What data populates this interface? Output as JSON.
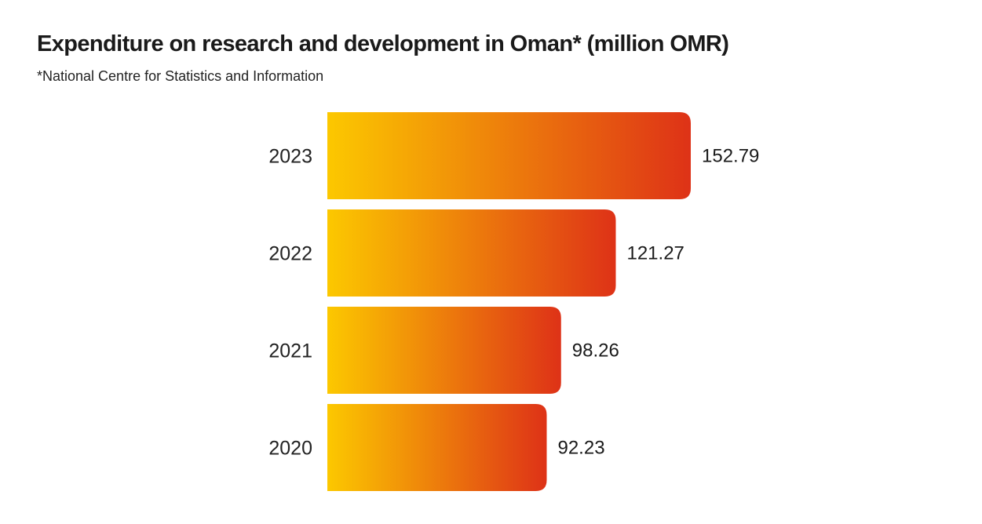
{
  "chart_data": {
    "type": "bar",
    "orientation": "horizontal",
    "title": "Expenditure on research and development in Oman* (million OMR)",
    "subtitle": "*National Centre for Statistics and Information",
    "categories": [
      "2023",
      "2022",
      "2021",
      "2020"
    ],
    "values": [
      152.79,
      121.27,
      98.26,
      92.23
    ],
    "value_labels": [
      "152.79",
      "121.27",
      "98.26",
      "92.23"
    ],
    "xlim": [
      0,
      152.79
    ],
    "grid": false,
    "legend": "none",
    "colors": {
      "gradient_start": "#fcc800",
      "gradient_end": "#de3217"
    }
  }
}
